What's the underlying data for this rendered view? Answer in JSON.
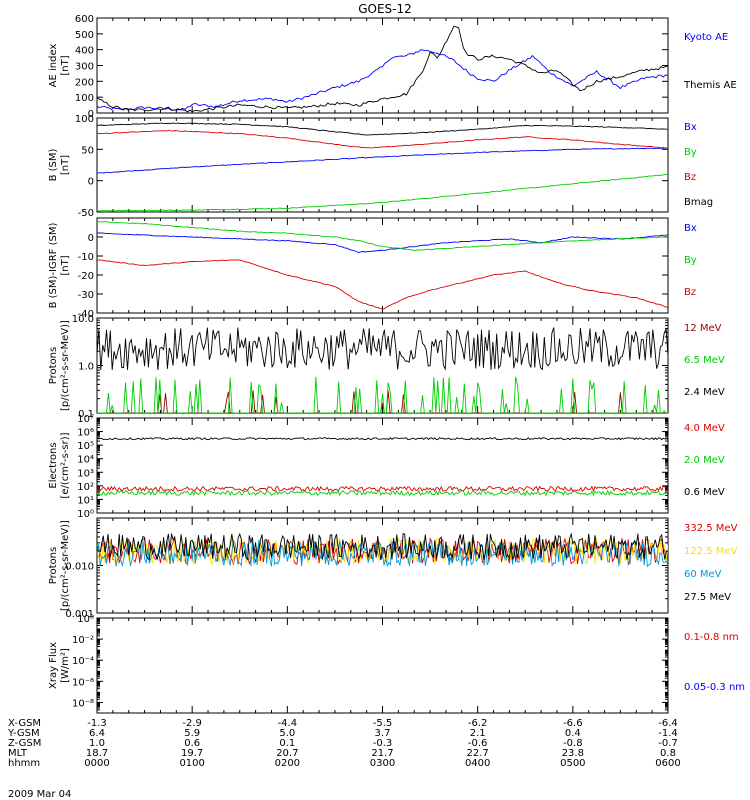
{
  "title": "GOES-12",
  "date_label": "2009 Mar 04",
  "colors": {
    "black": "#000000",
    "blue": "#0000ff",
    "green": "#00cc00",
    "red": "#dd0000",
    "darkred": "#990000",
    "yellow": "#ffdd00",
    "cyan": "#0099dd"
  },
  "chart_data": [
    {
      "type": "line",
      "panel": "ae-index",
      "ylabel": [
        "AE index",
        "[nT]"
      ],
      "ylim": [
        0,
        600
      ],
      "yticks": [
        {
          "v": 0,
          "label": "0"
        },
        {
          "v": 100,
          "label": "100"
        },
        {
          "v": 200,
          "label": "200"
        },
        {
          "v": 300,
          "label": "300"
        },
        {
          "v": 400,
          "label": "400"
        },
        {
          "v": 500,
          "label": "500"
        },
        {
          "v": 600,
          "label": "600"
        }
      ],
      "series": [
        {
          "name": "Kyoto AE",
          "color": "#0000ff",
          "x": [
            0,
            15,
            30,
            45,
            55,
            60,
            75,
            90,
            110,
            120,
            135,
            150,
            165,
            170,
            180,
            185,
            195,
            205,
            215,
            225,
            235,
            240,
            250,
            260,
            270,
            275,
            285,
            295,
            300,
            315,
            330,
            345,
            360
          ],
          "values": [
            40,
            20,
            35,
            25,
            20,
            55,
            40,
            80,
            90,
            70,
            110,
            160,
            200,
            230,
            290,
            350,
            360,
            400,
            380,
            330,
            250,
            220,
            200,
            270,
            330,
            360,
            260,
            200,
            170,
            260,
            160,
            220,
            240
          ]
        },
        {
          "name": "Themis AE",
          "color": "#000000",
          "x": [
            0,
            10,
            20,
            30,
            45,
            60,
            75,
            90,
            105,
            120,
            135,
            150,
            165,
            180,
            195,
            205,
            210,
            215,
            220,
            225,
            228,
            232,
            240,
            250,
            260,
            270,
            280,
            290,
            300,
            305,
            315,
            330,
            345,
            360
          ],
          "values": [
            90,
            40,
            20,
            20,
            30,
            10,
            30,
            50,
            40,
            30,
            40,
            60,
            50,
            90,
            120,
            260,
            380,
            350,
            450,
            550,
            540,
            380,
            340,
            360,
            340,
            300,
            250,
            270,
            180,
            140,
            200,
            230,
            270,
            290
          ]
        }
      ]
    },
    {
      "type": "line",
      "panel": "b-field",
      "ylabel": [
        "B (SM)",
        "[nT]"
      ],
      "ylim": [
        -50,
        100
      ],
      "yticks": [
        {
          "v": -50,
          "label": "-50"
        },
        {
          "v": 0,
          "label": "0"
        },
        {
          "v": 50,
          "label": "50"
        },
        {
          "v": 100,
          "label": "100"
        }
      ],
      "series": [
        {
          "name": "Bx",
          "color": "#0000ff",
          "x": [
            0,
            60,
            120,
            180,
            240,
            300,
            360
          ],
          "values": [
            12,
            22,
            30,
            38,
            45,
            50,
            52
          ]
        },
        {
          "name": "By",
          "color": "#00cc00",
          "x": [
            0,
            60,
            120,
            180,
            240,
            300,
            360
          ],
          "values": [
            -48,
            -47,
            -44,
            -35,
            -20,
            -5,
            10
          ]
        },
        {
          "name": "Bz",
          "color": "#dd0000",
          "x": [
            0,
            45,
            90,
            120,
            150,
            170,
            200,
            240,
            270,
            300,
            330,
            360
          ],
          "values": [
            75,
            80,
            75,
            68,
            58,
            52,
            57,
            65,
            70,
            65,
            58,
            52
          ]
        },
        {
          "name": "Bmag",
          "color": "#000000",
          "x": [
            0,
            45,
            90,
            120,
            150,
            170,
            200,
            240,
            270,
            300,
            330,
            360
          ],
          "values": [
            88,
            92,
            90,
            86,
            78,
            73,
            76,
            82,
            88,
            87,
            85,
            82
          ]
        }
      ]
    },
    {
      "type": "line",
      "panel": "b-minus-igrf",
      "ylabel": [
        "B (SM)-IGRF (SM)",
        "[nT]"
      ],
      "ylim": [
        -40,
        10
      ],
      "yticks": [
        {
          "v": -40,
          "label": "-40"
        },
        {
          "v": -30,
          "label": "-30"
        },
        {
          "v": -20,
          "label": "-20"
        },
        {
          "v": -10,
          "label": "-10"
        },
        {
          "v": 0,
          "label": "0"
        }
      ],
      "series": [
        {
          "name": "Bx",
          "color": "#0000ff",
          "x": [
            0,
            30,
            60,
            90,
            120,
            150,
            165,
            180,
            200,
            220,
            240,
            260,
            280,
            300,
            330,
            360
          ],
          "values": [
            2,
            1,
            0,
            -1,
            -2,
            -4,
            -8,
            -7,
            -5,
            -3,
            -2,
            -1,
            -3,
            0,
            -1,
            1
          ]
        },
        {
          "name": "By",
          "color": "#00cc00",
          "x": [
            0,
            30,
            60,
            90,
            120,
            150,
            165,
            180,
            200,
            220,
            240,
            260,
            280,
            300,
            330,
            360
          ],
          "values": [
            8,
            7,
            5,
            3,
            2,
            0,
            -2,
            -5,
            -7,
            -6,
            -5,
            -4,
            -3,
            -2,
            -1,
            0
          ]
        },
        {
          "name": "Bz",
          "color": "#dd0000",
          "x": [
            0,
            30,
            60,
            90,
            120,
            150,
            165,
            180,
            195,
            210,
            230,
            250,
            270,
            290,
            310,
            340,
            360
          ],
          "values": [
            -12,
            -15,
            -13,
            -12,
            -20,
            -26,
            -34,
            -38,
            -32,
            -28,
            -24,
            -20,
            -18,
            -24,
            -28,
            -32,
            -37
          ]
        }
      ]
    },
    {
      "type": "line",
      "panel": "protons-low",
      "ylabel": [
        "Protons",
        "[p/(cm²-s-sr-MeV)]"
      ],
      "yscale": "log",
      "ylim": [
        0.1,
        10.0
      ],
      "yticks": [
        {
          "v": 0.1,
          "label": "0.1"
        },
        {
          "v": 1.0,
          "label": "1.0"
        },
        {
          "v": 10.0,
          "label": "10.0"
        }
      ],
      "series": [
        {
          "name": "12 MeV",
          "color": "#990000",
          "baseline": 0.1,
          "spike_max": 0.2
        },
        {
          "name": "6.5 MeV",
          "color": "#00cc00",
          "baseline": 0.1,
          "spike_max": 0.5
        },
        {
          "name": "2.4 MeV",
          "color": "#000000",
          "baseline": 2.5,
          "spike_max": 6.0
        }
      ]
    },
    {
      "type": "line",
      "panel": "electrons",
      "ylabel": [
        "Electrons",
        "[e/(cm²-s-sr)]"
      ],
      "yscale": "log",
      "ylim": [
        1,
        10000000
      ],
      "yticks": [
        {
          "v": 1,
          "label": "10⁰"
        },
        {
          "v": 10,
          "label": "10¹"
        },
        {
          "v": 100,
          "label": "10²"
        },
        {
          "v": 1000,
          "label": "10³"
        },
        {
          "v": 10000,
          "label": "10⁴"
        },
        {
          "v": 100000,
          "label": "10⁵"
        },
        {
          "v": 1000000,
          "label": "10⁶"
        },
        {
          "v": 10000000,
          "label": "10⁷"
        }
      ],
      "series": [
        {
          "name": "4.0 MeV",
          "color": "#dd0000",
          "baseline": 60
        },
        {
          "name": "2.0 MeV",
          "color": "#00cc00",
          "baseline": 30
        },
        {
          "name": "0.6 MeV",
          "color": "#000000",
          "baseline": 300000
        }
      ]
    },
    {
      "type": "line",
      "panel": "protons-high",
      "ylabel": [
        "Protons",
        "[p/(cm²-s-sr-MeV)]"
      ],
      "yscale": "log",
      "ylim": [
        0.001,
        0.1
      ],
      "yticks": [
        {
          "v": 0.001,
          "label": "0.001"
        },
        {
          "v": 0.01,
          "label": "0.010"
        }
      ],
      "series": [
        {
          "name": "332.5 MeV",
          "color": "#dd0000",
          "baseline": 0.02
        },
        {
          "name": "122.5 MeV",
          "color": "#ffdd00",
          "baseline": 0.02
        },
        {
          "name": "60 MeV",
          "color": "#0099dd",
          "baseline": 0.018
        },
        {
          "name": "27.5 MeV",
          "color": "#000000",
          "baseline": 0.025
        }
      ]
    },
    {
      "type": "line",
      "panel": "xray",
      "ylabel": [
        "Xray Flux",
        "[W/m²]"
      ],
      "yscale": "log",
      "ylim": [
        1e-09,
        1
      ],
      "yticks": [
        {
          "v": 1e-08,
          "label": "10⁻⁸"
        },
        {
          "v": 1e-06,
          "label": "10⁻⁶"
        },
        {
          "v": 0.0001,
          "label": "10⁻⁴"
        },
        {
          "v": 0.01,
          "label": "10⁻²"
        },
        {
          "v": 1,
          "label": "10⁰"
        }
      ],
      "series": [
        {
          "name": "0.1-0.8 nm",
          "color": "#dd0000"
        },
        {
          "name": "0.05-0.3 nm",
          "color": "#0000ff"
        }
      ]
    }
  ],
  "footer": {
    "rows": [
      {
        "label": "X-GSM",
        "values": [
          "-1.3",
          "-2.9",
          "-4.4",
          "-5.5",
          "-6.2",
          "-6.6",
          "-6.4"
        ]
      },
      {
        "label": "Y-GSM",
        "values": [
          "6.4",
          "5.9",
          "5.0",
          "3.7",
          "2.1",
          "0.4",
          "-1.4"
        ]
      },
      {
        "label": "Z-GSM",
        "values": [
          "1.0",
          "0.6",
          "0.1",
          "-0.3",
          "-0.6",
          "-0.8",
          "-0.7"
        ]
      },
      {
        "label": "MLT",
        "values": [
          "18.7",
          "19.7",
          "20.7",
          "21.7",
          "22.7",
          "23.8",
          "0.8"
        ]
      },
      {
        "label": "hhmm",
        "values": [
          "0000",
          "0100",
          "0200",
          "0300",
          "0400",
          "0500",
          "0600"
        ]
      }
    ]
  }
}
